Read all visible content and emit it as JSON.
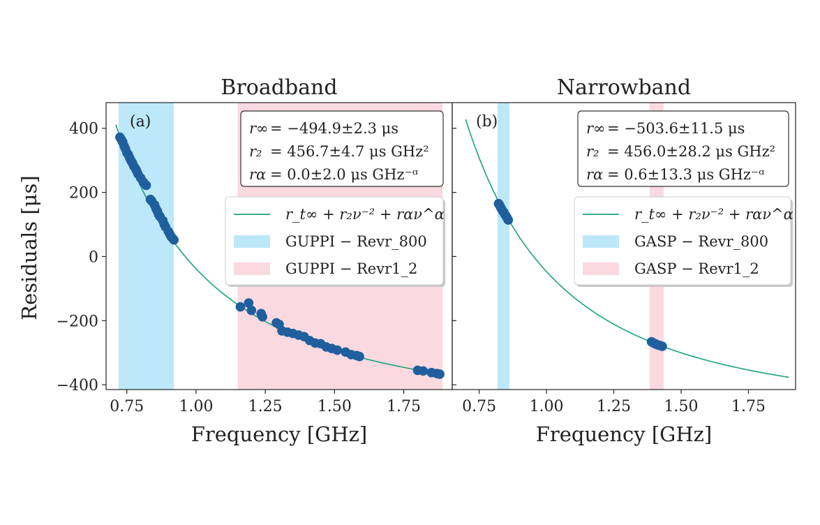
{
  "chart_data": {
    "type": "scatter",
    "ylabel": "Residuals [μs]",
    "xlabel": "Frequency [GHz]",
    "shared_y": true,
    "ylim": [
      -415,
      480
    ],
    "yticks": [
      400,
      200,
      0,
      -200,
      -400
    ],
    "ytick_labels": [
      "400",
      "200",
      "0",
      "−200",
      "−400"
    ],
    "panels": [
      {
        "id": "a",
        "letter": "(a)",
        "title": "Broadband",
        "xlim": [
          0.675,
          1.925
        ],
        "xticks": [
          0.75,
          1.0,
          1.25,
          1.5,
          1.75
        ],
        "xtick_labels": [
          "0.75",
          "1.00",
          "1.25",
          "1.50",
          "1.75"
        ],
        "annotation": [
          {
            "lhs": "r∞",
            "rhs": "= −494.9±2.3 μs"
          },
          {
            "lhs": "r₂",
            "rhs": "= 456.7±4.7 μs GHz²"
          },
          {
            "lhs": "rα",
            "rhs": "= 0.0±2.0 μs GHz⁻ᵅ"
          }
        ],
        "fit": {
          "r_inf": -494.9,
          "r2": 456.7,
          "r_alpha": 0.0,
          "x_range": [
            0.71,
            1.89
          ],
          "color": "#1aa37a"
        },
        "bands": [
          {
            "name": "GUPPI − Revr_800",
            "x_range": [
              0.72,
              0.92
            ],
            "color": "#bde8f9"
          },
          {
            "name": "GUPPI − Revr1_2",
            "x_range": [
              1.15,
              1.89
            ],
            "color": "#fad9e1"
          }
        ],
        "legend": {
          "placement": "right",
          "entries": [
            "r_t∞ + r₂ν⁻² + rαν^α",
            "GUPPI − Revr_800",
            "GUPPI − Revr1_2"
          ]
        },
        "points": [
          [
            0.725,
            372
          ],
          [
            0.73,
            365
          ],
          [
            0.735,
            357
          ],
          [
            0.74,
            345
          ],
          [
            0.745,
            336
          ],
          [
            0.75,
            324
          ],
          [
            0.755,
            318
          ],
          [
            0.76,
            308
          ],
          [
            0.765,
            299
          ],
          [
            0.77,
            292
          ],
          [
            0.775,
            282
          ],
          [
            0.78,
            276
          ],
          [
            0.785,
            268
          ],
          [
            0.79,
            258
          ],
          [
            0.8,
            245
          ],
          [
            0.81,
            232
          ],
          [
            0.82,
            222
          ],
          [
            0.835,
            178
          ],
          [
            0.84,
            173
          ],
          [
            0.85,
            161
          ],
          [
            0.855,
            150
          ],
          [
            0.86,
            142
          ],
          [
            0.865,
            131
          ],
          [
            0.87,
            124
          ],
          [
            0.88,
            112
          ],
          [
            0.885,
            100
          ],
          [
            0.89,
            92
          ],
          [
            0.9,
            78
          ],
          [
            0.905,
            70
          ],
          [
            0.91,
            62
          ],
          [
            0.915,
            57
          ],
          [
            0.92,
            52
          ],
          [
            1.16,
            -157
          ],
          [
            1.19,
            -145
          ],
          [
            1.2,
            -168
          ],
          [
            1.235,
            -178
          ],
          [
            1.24,
            -188
          ],
          [
            1.29,
            -207
          ],
          [
            1.3,
            -212
          ],
          [
            1.31,
            -232
          ],
          [
            1.33,
            -236
          ],
          [
            1.35,
            -240
          ],
          [
            1.37,
            -245
          ],
          [
            1.39,
            -250
          ],
          [
            1.41,
            -262
          ],
          [
            1.43,
            -270
          ],
          [
            1.45,
            -272
          ],
          [
            1.47,
            -282
          ],
          [
            1.49,
            -287
          ],
          [
            1.51,
            -292
          ],
          [
            1.54,
            -298
          ],
          [
            1.56,
            -306
          ],
          [
            1.58,
            -309
          ],
          [
            1.59,
            -312
          ],
          [
            1.8,
            -355
          ],
          [
            1.82,
            -357
          ],
          [
            1.85,
            -362
          ],
          [
            1.87,
            -365
          ],
          [
            1.88,
            -367
          ]
        ]
      },
      {
        "id": "b",
        "letter": "(b)",
        "title": "Narrowband",
        "xlim": [
          0.65,
          1.925
        ],
        "xticks": [
          0.75,
          1.0,
          1.25,
          1.5,
          1.75
        ],
        "xtick_labels": [
          "0.75",
          "1.00",
          "1.25",
          "1.50",
          "1.75"
        ],
        "annotation": [
          {
            "lhs": "r∞",
            "rhs": "= −503.6±11.5 μs"
          },
          {
            "lhs": "r₂",
            "rhs": "= 456.0±28.2 μs GHz²"
          },
          {
            "lhs": "rα",
            "rhs": "= 0.6±13.3 μs GHz⁻ᵅ"
          }
        ],
        "fit": {
          "r_inf": -503.6,
          "r2": 456.0,
          "r_alpha": 0.6,
          "x_range": [
            0.7,
            1.9
          ],
          "color": "#1aa37a"
        },
        "bands": [
          {
            "name": "GASP − Revr_800",
            "x_range": [
              0.818,
              0.862
            ],
            "color": "#bde8f9"
          },
          {
            "name": "GASP − Revr1_2",
            "x_range": [
              1.383,
              1.435
            ],
            "color": "#fad9e1"
          }
        ],
        "legend": {
          "placement": "right",
          "entries": [
            "r_t∞ + r₂ν⁻² + rαν^α",
            "GASP − Revr_800",
            "GASP − Revr1_2"
          ]
        },
        "points": [
          [
            0.822,
            165
          ],
          [
            0.826,
            160
          ],
          [
            0.83,
            153
          ],
          [
            0.834,
            147
          ],
          [
            0.838,
            141
          ],
          [
            0.842,
            137
          ],
          [
            0.846,
            131
          ],
          [
            0.85,
            126
          ],
          [
            0.854,
            120
          ],
          [
            0.858,
            114
          ],
          [
            1.39,
            -266
          ],
          [
            1.398,
            -270
          ],
          [
            1.406,
            -273
          ],
          [
            1.414,
            -276
          ],
          [
            1.422,
            -278
          ],
          [
            1.43,
            -280
          ]
        ]
      }
    ]
  }
}
